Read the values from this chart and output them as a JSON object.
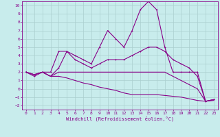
{
  "xlabel": "Windchill (Refroidissement éolien,°C)",
  "xlim": [
    -0.5,
    23.5
  ],
  "ylim": [
    -2.5,
    10.5
  ],
  "xticks": [
    0,
    1,
    2,
    3,
    4,
    5,
    6,
    7,
    8,
    9,
    10,
    11,
    12,
    13,
    14,
    15,
    16,
    17,
    18,
    19,
    20,
    21,
    22,
    23
  ],
  "yticks": [
    -2,
    -1,
    0,
    1,
    2,
    3,
    4,
    5,
    6,
    7,
    8,
    9,
    10
  ],
  "background_color": "#c8ecec",
  "grid_color": "#aacfcf",
  "line_color": "#880088",
  "line1_x": [
    0,
    1,
    2,
    3,
    4,
    5,
    6,
    7,
    8,
    9,
    10,
    11,
    12,
    13,
    14,
    15,
    16,
    17,
    18,
    19,
    20,
    21,
    22,
    23
  ],
  "line1_y": [
    2.0,
    1.5,
    2.0,
    2.0,
    4.5,
    4.5,
    4.0,
    3.5,
    3.0,
    5.0,
    7.0,
    6.0,
    5.0,
    7.0,
    9.5,
    10.5,
    9.5,
    5.0,
    2.0,
    2.0,
    2.0,
    2.0,
    -1.5,
    -1.3
  ],
  "line2_x": [
    0,
    1,
    2,
    3,
    4,
    5,
    6,
    7,
    8,
    9,
    10,
    11,
    12,
    13,
    14,
    15,
    16,
    17,
    18,
    19,
    20,
    21,
    22,
    23
  ],
  "line2_y": [
    2.0,
    1.7,
    2.0,
    1.5,
    2.5,
    4.5,
    3.5,
    3.0,
    2.5,
    3.0,
    3.5,
    3.5,
    3.5,
    4.0,
    4.5,
    5.0,
    5.0,
    4.5,
    3.5,
    3.0,
    2.5,
    1.5,
    -1.5,
    -1.3
  ],
  "line3_x": [
    0,
    1,
    2,
    3,
    4,
    5,
    6,
    7,
    8,
    9,
    10,
    11,
    12,
    13,
    14,
    15,
    16,
    17,
    18,
    19,
    20,
    21,
    22,
    23
  ],
  "line3_y": [
    2.0,
    1.7,
    2.0,
    1.5,
    2.0,
    2.0,
    2.0,
    2.0,
    2.0,
    2.0,
    2.0,
    2.0,
    2.0,
    2.0,
    2.0,
    2.0,
    2.0,
    2.0,
    1.5,
    1.0,
    0.5,
    0.0,
    -1.5,
    -1.3
  ],
  "line4_x": [
    0,
    1,
    2,
    3,
    4,
    5,
    6,
    7,
    8,
    9,
    10,
    11,
    12,
    13,
    14,
    15,
    16,
    17,
    18,
    19,
    20,
    21,
    22,
    23
  ],
  "line4_y": [
    2.0,
    1.7,
    2.0,
    1.5,
    1.5,
    1.3,
    1.0,
    0.7,
    0.5,
    0.2,
    0.0,
    -0.2,
    -0.5,
    -0.7,
    -0.7,
    -0.7,
    -0.7,
    -0.8,
    -0.9,
    -1.0,
    -1.2,
    -1.4,
    -1.5,
    -1.4
  ]
}
